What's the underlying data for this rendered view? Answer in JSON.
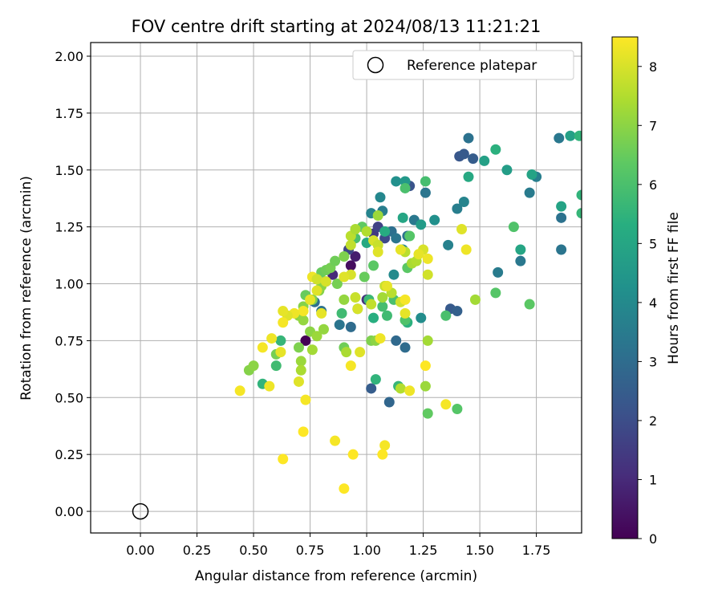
{
  "chart_data": {
    "type": "scatter",
    "title": "FOV centre drift starting at 2024/08/13 11:21:21",
    "xlabel": "Angular distance from reference (arcmin)",
    "ylabel": "Rotation from reference (arcmin)",
    "xlim": [
      -0.22,
      1.95
    ],
    "ylim": [
      -0.095,
      2.06
    ],
    "xticks": [
      "0.00",
      "0.25",
      "0.50",
      "0.75",
      "1.00",
      "1.25",
      "1.50",
      "1.75"
    ],
    "yticks": [
      "0.00",
      "0.25",
      "0.50",
      "0.75",
      "1.00",
      "1.25",
      "1.50",
      "1.75",
      "2.00"
    ],
    "grid": true,
    "legend": {
      "position": "top-right",
      "entries": [
        "Reference platepar"
      ]
    },
    "reference_point": {
      "label": "Reference platepar",
      "x": 0.0,
      "y": 0.0
    },
    "colorbar": {
      "label": "Hours from first FF file",
      "range": [
        0,
        8.5
      ],
      "ticks": [
        "0",
        "1",
        "2",
        "3",
        "4",
        "5",
        "6",
        "7",
        "8"
      ],
      "colormap": "viridis"
    },
    "points": [
      {
        "x": 0.73,
        "y": 0.75,
        "h": 0.0
      },
      {
        "x": 0.93,
        "y": 1.08,
        "h": 0.3
      },
      {
        "x": 0.95,
        "y": 1.12,
        "h": 0.7
      },
      {
        "x": 0.85,
        "y": 1.04,
        "h": 1.0
      },
      {
        "x": 1.0,
        "y": 0.93,
        "h": 1.2
      },
      {
        "x": 1.03,
        "y": 1.22,
        "h": 1.4
      },
      {
        "x": 0.82,
        "y": 1.01,
        "h": 1.5
      },
      {
        "x": 1.05,
        "y": 1.25,
        "h": 1.7
      },
      {
        "x": 1.08,
        "y": 1.2,
        "h": 1.9
      },
      {
        "x": 0.92,
        "y": 1.15,
        "h": 1.8
      },
      {
        "x": 1.19,
        "y": 1.43,
        "h": 2.2
      },
      {
        "x": 1.41,
        "y": 1.56,
        "h": 2.3
      },
      {
        "x": 1.43,
        "y": 1.57,
        "h": 2.4
      },
      {
        "x": 1.47,
        "y": 1.55,
        "h": 2.5
      },
      {
        "x": 1.37,
        "y": 0.89,
        "h": 2.4
      },
      {
        "x": 1.4,
        "y": 0.88,
        "h": 2.6
      },
      {
        "x": 1.02,
        "y": 0.54,
        "h": 2.5
      },
      {
        "x": 1.1,
        "y": 0.48,
        "h": 2.8
      },
      {
        "x": 1.13,
        "y": 0.75,
        "h": 2.9
      },
      {
        "x": 1.17,
        "y": 0.72,
        "h": 3.0
      },
      {
        "x": 0.93,
        "y": 0.81,
        "h": 3.0
      },
      {
        "x": 0.88,
        "y": 0.82,
        "h": 3.3
      },
      {
        "x": 0.77,
        "y": 0.92,
        "h": 3.1
      },
      {
        "x": 0.8,
        "y": 0.88,
        "h": 3.2
      },
      {
        "x": 1.11,
        "y": 1.23,
        "h": 3.1
      },
      {
        "x": 1.13,
        "y": 1.2,
        "h": 3.3
      },
      {
        "x": 1.18,
        "y": 1.21,
        "h": 3.2
      },
      {
        "x": 1.21,
        "y": 1.28,
        "h": 3.4
      },
      {
        "x": 1.26,
        "y": 1.4,
        "h": 3.3
      },
      {
        "x": 1.45,
        "y": 1.64,
        "h": 3.2
      },
      {
        "x": 1.85,
        "y": 1.64,
        "h": 3.4
      },
      {
        "x": 1.86,
        "y": 1.29,
        "h": 3.2
      },
      {
        "x": 1.86,
        "y": 1.15,
        "h": 3.3
      },
      {
        "x": 1.72,
        "y": 1.4,
        "h": 3.5
      },
      {
        "x": 1.75,
        "y": 1.47,
        "h": 3.6
      },
      {
        "x": 1.68,
        "y": 1.1,
        "h": 3.4
      },
      {
        "x": 1.58,
        "y": 1.05,
        "h": 3.5
      },
      {
        "x": 1.4,
        "y": 1.33,
        "h": 3.6
      },
      {
        "x": 1.43,
        "y": 1.36,
        "h": 3.8
      },
      {
        "x": 1.36,
        "y": 1.17,
        "h": 3.7
      },
      {
        "x": 1.07,
        "y": 1.32,
        "h": 3.6
      },
      {
        "x": 1.06,
        "y": 1.38,
        "h": 3.9
      },
      {
        "x": 1.02,
        "y": 1.31,
        "h": 3.8
      },
      {
        "x": 1.16,
        "y": 1.15,
        "h": 3.9
      },
      {
        "x": 1.12,
        "y": 1.04,
        "h": 4.0
      },
      {
        "x": 1.24,
        "y": 0.85,
        "h": 4.1
      },
      {
        "x": 1.13,
        "y": 1.45,
        "h": 4.2
      },
      {
        "x": 1.3,
        "y": 1.28,
        "h": 4.2
      },
      {
        "x": 1.17,
        "y": 1.45,
        "h": 4.5
      },
      {
        "x": 1.24,
        "y": 1.26,
        "h": 4.6
      },
      {
        "x": 1.52,
        "y": 1.54,
        "h": 4.8
      },
      {
        "x": 1.62,
        "y": 1.5,
        "h": 4.7
      },
      {
        "x": 1.73,
        "y": 1.48,
        "h": 4.9
      },
      {
        "x": 1.9,
        "y": 1.65,
        "h": 4.8
      },
      {
        "x": 1.86,
        "y": 1.34,
        "h": 4.9
      },
      {
        "x": 1.68,
        "y": 1.15,
        "h": 5.0
      },
      {
        "x": 1.45,
        "y": 1.47,
        "h": 5.1
      },
      {
        "x": 1.16,
        "y": 1.29,
        "h": 5.0
      },
      {
        "x": 1.08,
        "y": 1.23,
        "h": 5.2
      },
      {
        "x": 1.0,
        "y": 1.18,
        "h": 5.1
      },
      {
        "x": 1.03,
        "y": 0.85,
        "h": 5.3
      },
      {
        "x": 1.18,
        "y": 0.83,
        "h": 5.4
      },
      {
        "x": 1.04,
        "y": 0.58,
        "h": 5.5
      },
      {
        "x": 1.14,
        "y": 0.55,
        "h": 5.6
      },
      {
        "x": 0.54,
        "y": 0.56,
        "h": 5.5
      },
      {
        "x": 0.62,
        "y": 0.75,
        "h": 5.6
      },
      {
        "x": 0.6,
        "y": 0.64,
        "h": 5.8
      },
      {
        "x": 0.89,
        "y": 0.87,
        "h": 5.8
      },
      {
        "x": 0.96,
        "y": 0.89,
        "h": 5.9
      },
      {
        "x": 1.01,
        "y": 0.93,
        "h": 5.7
      },
      {
        "x": 1.07,
        "y": 0.9,
        "h": 5.9
      },
      {
        "x": 1.09,
        "y": 0.86,
        "h": 5.8
      },
      {
        "x": 1.12,
        "y": 0.93,
        "h": 6.0
      },
      {
        "x": 1.17,
        "y": 0.84,
        "h": 6.1
      },
      {
        "x": 1.26,
        "y": 1.45,
        "h": 5.9
      },
      {
        "x": 1.17,
        "y": 1.42,
        "h": 6.0
      },
      {
        "x": 1.19,
        "y": 1.21,
        "h": 6.2
      },
      {
        "x": 1.2,
        "y": 1.09,
        "h": 6.1
      },
      {
        "x": 1.18,
        "y": 1.07,
        "h": 6.3
      },
      {
        "x": 1.35,
        "y": 0.86,
        "h": 6.0
      },
      {
        "x": 1.4,
        "y": 0.45,
        "h": 6.2
      },
      {
        "x": 1.27,
        "y": 0.43,
        "h": 6.4
      },
      {
        "x": 1.57,
        "y": 0.96,
        "h": 6.2
      },
      {
        "x": 1.72,
        "y": 0.91,
        "h": 6.3
      },
      {
        "x": 1.65,
        "y": 1.25,
        "h": 6.1
      },
      {
        "x": 1.95,
        "y": 1.31,
        "h": 5.6
      },
      {
        "x": 1.95,
        "y": 1.39,
        "h": 5.5
      },
      {
        "x": 1.57,
        "y": 1.59,
        "h": 5.4
      },
      {
        "x": 0.95,
        "y": 1.2,
        "h": 6.0
      },
      {
        "x": 0.98,
        "y": 1.25,
        "h": 6.4
      },
      {
        "x": 1.03,
        "y": 1.08,
        "h": 6.3
      },
      {
        "x": 0.99,
        "y": 1.03,
        "h": 6.5
      },
      {
        "x": 0.8,
        "y": 1.05,
        "h": 6.5
      },
      {
        "x": 0.82,
        "y": 1.06,
        "h": 6.6
      },
      {
        "x": 0.84,
        "y": 1.07,
        "h": 6.7
      },
      {
        "x": 0.86,
        "y": 1.1,
        "h": 6.6
      },
      {
        "x": 0.9,
        "y": 1.12,
        "h": 6.8
      },
      {
        "x": 0.87,
        "y": 1.0,
        "h": 6.7
      },
      {
        "x": 0.79,
        "y": 0.97,
        "h": 6.9
      },
      {
        "x": 0.76,
        "y": 0.93,
        "h": 6.8
      },
      {
        "x": 0.72,
        "y": 0.9,
        "h": 6.9
      },
      {
        "x": 0.7,
        "y": 0.86,
        "h": 7.0
      },
      {
        "x": 0.72,
        "y": 0.84,
        "h": 7.1
      },
      {
        "x": 0.75,
        "y": 0.79,
        "h": 7.0
      },
      {
        "x": 0.78,
        "y": 0.77,
        "h": 7.2
      },
      {
        "x": 0.81,
        "y": 0.8,
        "h": 7.1
      },
      {
        "x": 0.76,
        "y": 0.71,
        "h": 7.3
      },
      {
        "x": 0.7,
        "y": 0.72,
        "h": 6.8
      },
      {
        "x": 0.71,
        "y": 0.66,
        "h": 7.2
      },
      {
        "x": 0.71,
        "y": 0.62,
        "h": 7.4
      },
      {
        "x": 0.6,
        "y": 0.69,
        "h": 6.7
      },
      {
        "x": 0.48,
        "y": 0.62,
        "h": 6.9
      },
      {
        "x": 0.5,
        "y": 0.64,
        "h": 7.0
      },
      {
        "x": 0.73,
        "y": 0.95,
        "h": 6.5
      },
      {
        "x": 0.8,
        "y": 0.99,
        "h": 7.0
      },
      {
        "x": 0.9,
        "y": 0.93,
        "h": 7.1
      },
      {
        "x": 0.9,
        "y": 0.72,
        "h": 6.6
      },
      {
        "x": 0.91,
        "y": 0.7,
        "h": 7.4
      },
      {
        "x": 1.02,
        "y": 0.75,
        "h": 6.8
      },
      {
        "x": 1.04,
        "y": 0.75,
        "h": 7.0
      },
      {
        "x": 1.27,
        "y": 0.75,
        "h": 7.3
      },
      {
        "x": 1.26,
        "y": 0.55,
        "h": 7.2
      },
      {
        "x": 1.15,
        "y": 0.54,
        "h": 7.5
      },
      {
        "x": 1.48,
        "y": 0.93,
        "h": 7.3
      },
      {
        "x": 0.93,
        "y": 1.21,
        "h": 7.6
      },
      {
        "x": 0.95,
        "y": 1.24,
        "h": 7.4
      },
      {
        "x": 0.93,
        "y": 1.17,
        "h": 7.7
      },
      {
        "x": 1.0,
        "y": 1.23,
        "h": 7.5
      },
      {
        "x": 1.05,
        "y": 1.3,
        "h": 7.2
      },
      {
        "x": 1.17,
        "y": 1.14,
        "h": 7.6
      },
      {
        "x": 1.2,
        "y": 1.09,
        "h": 7.4
      },
      {
        "x": 1.22,
        "y": 1.1,
        "h": 7.5
      },
      {
        "x": 1.08,
        "y": 0.99,
        "h": 7.8
      },
      {
        "x": 1.11,
        "y": 0.96,
        "h": 7.6
      },
      {
        "x": 1.07,
        "y": 0.94,
        "h": 7.3
      },
      {
        "x": 1.02,
        "y": 0.91,
        "h": 7.7
      },
      {
        "x": 1.15,
        "y": 0.92,
        "h": 7.9
      },
      {
        "x": 0.95,
        "y": 0.94,
        "h": 7.8
      },
      {
        "x": 0.93,
        "y": 1.04,
        "h": 8.0
      },
      {
        "x": 0.9,
        "y": 1.03,
        "h": 8.1
      },
      {
        "x": 1.03,
        "y": 1.19,
        "h": 8.0
      },
      {
        "x": 1.05,
        "y": 1.17,
        "h": 7.8
      },
      {
        "x": 1.05,
        "y": 1.14,
        "h": 8.1
      },
      {
        "x": 1.15,
        "y": 1.15,
        "h": 8.2
      },
      {
        "x": 1.25,
        "y": 1.15,
        "h": 8.0
      },
      {
        "x": 1.23,
        "y": 1.13,
        "h": 8.2
      },
      {
        "x": 1.27,
        "y": 1.11,
        "h": 8.3
      },
      {
        "x": 1.27,
        "y": 1.04,
        "h": 7.9
      },
      {
        "x": 1.42,
        "y": 1.24,
        "h": 8.1
      },
      {
        "x": 1.44,
        "y": 1.15,
        "h": 8.3
      },
      {
        "x": 1.17,
        "y": 0.87,
        "h": 8.2
      },
      {
        "x": 1.17,
        "y": 0.93,
        "h": 8.4
      },
      {
        "x": 1.09,
        "y": 0.99,
        "h": 8.2
      },
      {
        "x": 1.06,
        "y": 0.76,
        "h": 8.3
      },
      {
        "x": 0.96,
        "y": 0.89,
        "h": 8.0
      },
      {
        "x": 0.97,
        "y": 0.7,
        "h": 8.1
      },
      {
        "x": 0.93,
        "y": 0.64,
        "h": 8.4
      },
      {
        "x": 0.8,
        "y": 0.87,
        "h": 8.2
      },
      {
        "x": 0.78,
        "y": 0.97,
        "h": 8.1
      },
      {
        "x": 0.76,
        "y": 1.03,
        "h": 8.3
      },
      {
        "x": 0.78,
        "y": 1.02,
        "h": 7.9
      },
      {
        "x": 0.82,
        "y": 1.01,
        "h": 8.0
      },
      {
        "x": 0.75,
        "y": 0.93,
        "h": 8.2
      },
      {
        "x": 0.72,
        "y": 0.88,
        "h": 8.4
      },
      {
        "x": 0.68,
        "y": 0.87,
        "h": 8.3
      },
      {
        "x": 0.65,
        "y": 0.86,
        "h": 8.1
      },
      {
        "x": 0.63,
        "y": 0.88,
        "h": 8.2
      },
      {
        "x": 0.63,
        "y": 0.83,
        "h": 8.4
      },
      {
        "x": 0.58,
        "y": 0.76,
        "h": 8.3
      },
      {
        "x": 0.54,
        "y": 0.72,
        "h": 8.4
      },
      {
        "x": 0.62,
        "y": 0.7,
        "h": 8.2
      },
      {
        "x": 0.44,
        "y": 0.53,
        "h": 8.4
      },
      {
        "x": 0.57,
        "y": 0.55,
        "h": 8.3
      },
      {
        "x": 0.73,
        "y": 0.49,
        "h": 8.4
      },
      {
        "x": 0.72,
        "y": 0.35,
        "h": 8.5
      },
      {
        "x": 0.63,
        "y": 0.23,
        "h": 8.5
      },
      {
        "x": 0.86,
        "y": 0.31,
        "h": 8.4
      },
      {
        "x": 0.94,
        "y": 0.25,
        "h": 8.5
      },
      {
        "x": 0.9,
        "y": 0.1,
        "h": 8.5
      },
      {
        "x": 1.08,
        "y": 0.29,
        "h": 8.4
      },
      {
        "x": 1.07,
        "y": 0.25,
        "h": 8.5
      },
      {
        "x": 1.19,
        "y": 0.53,
        "h": 8.3
      },
      {
        "x": 1.26,
        "y": 0.64,
        "h": 8.5
      },
      {
        "x": 1.35,
        "y": 0.47,
        "h": 8.4
      },
      {
        "x": 0.7,
        "y": 0.57,
        "h": 8.1
      },
      {
        "x": 1.94,
        "y": 1.65,
        "h": 5.5
      }
    ]
  }
}
